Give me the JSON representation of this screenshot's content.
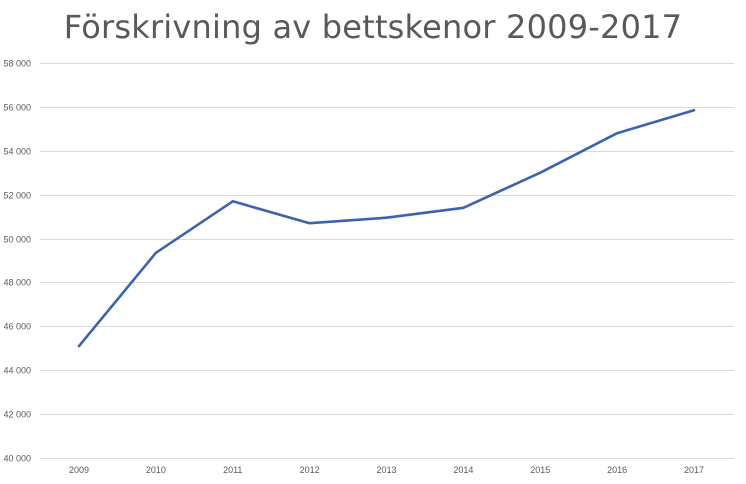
{
  "chart_data": {
    "type": "line",
    "title": "Förskrivning av bettskenor 2009-2017",
    "xlabel": "",
    "ylabel": "",
    "categories": [
      "2009",
      "2010",
      "2011",
      "2012",
      "2013",
      "2014",
      "2015",
      "2016",
      "2017"
    ],
    "series": [
      {
        "values": [
          45100,
          49350,
          51700,
          50700,
          50950,
          51400,
          53000,
          54800,
          55850
        ],
        "color": "#3a64b1"
      }
    ],
    "ylim": [
      40000,
      58000
    ],
    "yticks": [
      40000,
      42000,
      44000,
      46000,
      48000,
      50000,
      52000,
      54000,
      56000,
      58000
    ],
    "ytick_labels": [
      "40 000",
      "42 000",
      "44 000",
      "46 000",
      "48 000",
      "50 000",
      "52 000",
      "54 000",
      "56 000",
      "58 000"
    ],
    "grid": true,
    "legend": "none"
  }
}
